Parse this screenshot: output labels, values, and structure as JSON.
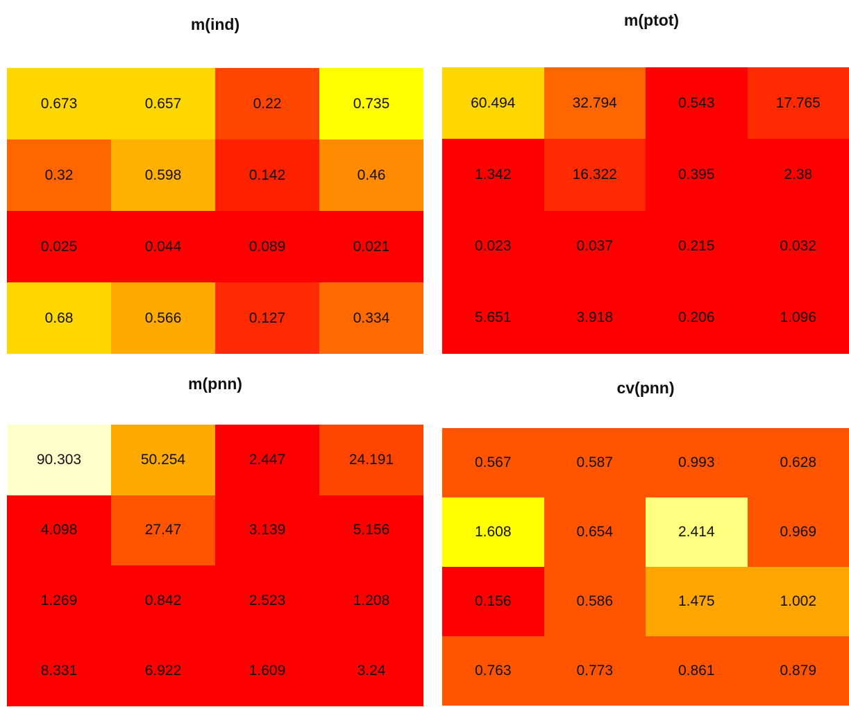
{
  "chart_data": [
    {
      "type": "heatmap",
      "title": "m(ind)",
      "values": [
        [
          "0.673",
          "0.657",
          "0.22",
          "0.735"
        ],
        [
          "0.32",
          "0.598",
          "0.142",
          "0.46"
        ],
        [
          "0.025",
          "0.044",
          "0.089",
          "0.021"
        ],
        [
          "0.68",
          "0.566",
          "0.127",
          "0.334"
        ]
      ],
      "colors": [
        [
          "#FFD700",
          "#FFD700",
          "#FF4500",
          "#FFFF00"
        ],
        [
          "#FF6600",
          "#FFB000",
          "#FF2000",
          "#FF8C00"
        ],
        [
          "#FF0000",
          "#FF0000",
          "#FF0000",
          "#FF0000"
        ],
        [
          "#FFD700",
          "#FFAA00",
          "#FF2A00",
          "#FF6A00"
        ]
      ]
    },
    {
      "type": "heatmap",
      "title": "m(ptot)",
      "values": [
        [
          "60.494",
          "32.794",
          "0.543",
          "17.765"
        ],
        [
          "1.342",
          "16.322",
          "0.395",
          "2.38"
        ],
        [
          "0.023",
          "0.037",
          "0.215",
          "0.032"
        ],
        [
          "5.651",
          "3.918",
          "0.206",
          "1.096"
        ]
      ],
      "colors": [
        [
          "#FFD700",
          "#FF6600",
          "#FF0000",
          "#FF2A00"
        ],
        [
          "#FF0000",
          "#FF2A00",
          "#FF0000",
          "#FF0000"
        ],
        [
          "#FF0000",
          "#FF0000",
          "#FF0000",
          "#FF0000"
        ],
        [
          "#FF0000",
          "#FF0000",
          "#FF0000",
          "#FF0000"
        ]
      ]
    },
    {
      "type": "heatmap",
      "title": "m(pnn)",
      "values": [
        [
          "90.303",
          "50.254",
          "2.447",
          "24.191"
        ],
        [
          "4.098",
          "27.47",
          "3.139",
          "5.156"
        ],
        [
          "1.269",
          "0.842",
          "2.523",
          "1.208"
        ],
        [
          "8.331",
          "6.922",
          "1.609",
          "3.24"
        ]
      ],
      "colors": [
        [
          "#FFFFCC",
          "#FFAA00",
          "#FF0000",
          "#FF4500"
        ],
        [
          "#FF0000",
          "#FF5500",
          "#FF0000",
          "#FF0000"
        ],
        [
          "#FF0000",
          "#FF0000",
          "#FF0000",
          "#FF0000"
        ],
        [
          "#FF0000",
          "#FF0000",
          "#FF0000",
          "#FF0000"
        ]
      ]
    },
    {
      "type": "heatmap",
      "title": "cv(pnn)",
      "values": [
        [
          "0.567",
          "0.587",
          "0.993",
          "0.628"
        ],
        [
          "1.608",
          "0.654",
          "2.414",
          "0.969"
        ],
        [
          "0.156",
          "0.586",
          "1.475",
          "1.002"
        ],
        [
          "0.763",
          "0.773",
          "0.861",
          "0.879"
        ]
      ],
      "colors": [
        [
          "#FF5500",
          "#FF5500",
          "#FF5500",
          "#FF5500"
        ],
        [
          "#FFFF00",
          "#FF5500",
          "#FFFF80",
          "#FF5500"
        ],
        [
          "#FF0000",
          "#FF5500",
          "#FFA500",
          "#FFA500"
        ],
        [
          "#FF5500",
          "#FF5500",
          "#FF5500",
          "#FF5500"
        ]
      ]
    }
  ]
}
